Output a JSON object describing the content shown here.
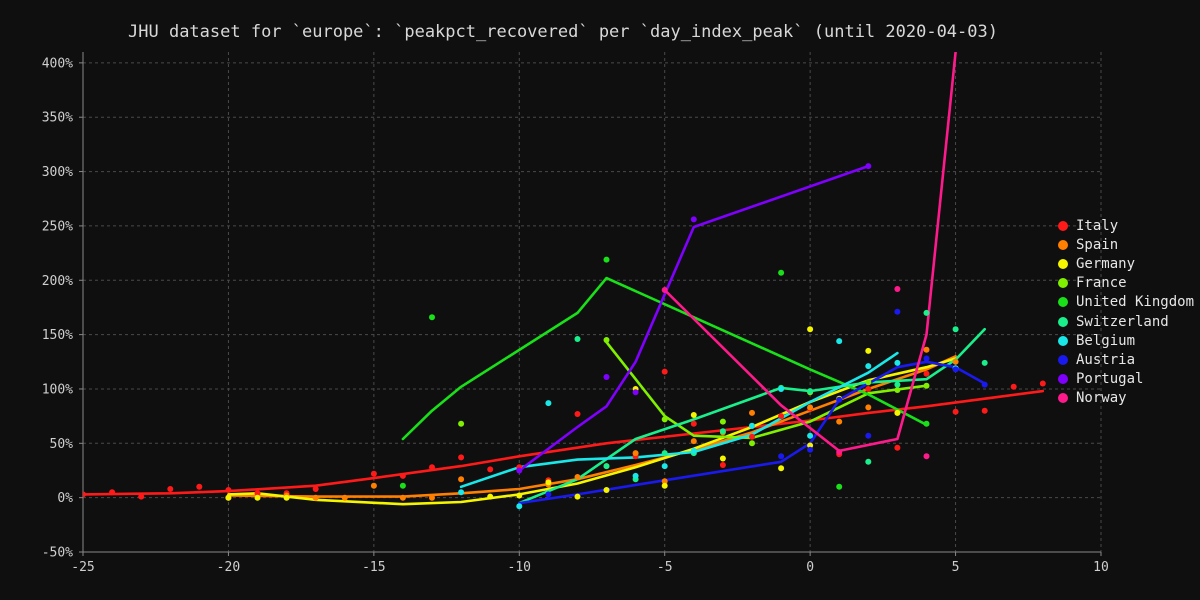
{
  "chart_data": {
    "type": "line",
    "title": "JHU dataset for `europe`: `peakpct_recovered` per `day_index_peak` (until 2020-04-03)",
    "xlabel": "",
    "ylabel": "",
    "xlim": [
      -25,
      10
    ],
    "ylim": [
      -50,
      410
    ],
    "x_ticks": [
      -25,
      -20,
      -15,
      -10,
      -5,
      0,
      5,
      10
    ],
    "y_ticks": [
      -50,
      0,
      50,
      100,
      150,
      200,
      250,
      300,
      350,
      400
    ],
    "y_tick_labels": [
      "-50%",
      "0%",
      "50%",
      "100%",
      "150%",
      "200%",
      "250%",
      "300%",
      "350%",
      "400%"
    ],
    "grid": true,
    "legend_position": "right",
    "series": [
      {
        "name": "Italy",
        "color": "#ff1a1a",
        "points": [
          [
            -25,
            3
          ],
          [
            -24,
            5
          ],
          [
            -23,
            1
          ],
          [
            -22,
            8
          ],
          [
            -21,
            10
          ],
          [
            -20,
            7
          ],
          [
            -19,
            4
          ],
          [
            -18,
            4
          ],
          [
            -17,
            8
          ],
          [
            -15,
            22
          ],
          [
            -14,
            20
          ],
          [
            -13,
            28
          ],
          [
            -12,
            37
          ],
          [
            -11,
            26
          ],
          [
            -10,
            28
          ],
          [
            -9,
            16
          ],
          [
            -8,
            77
          ],
          [
            -7,
            29
          ],
          [
            -6,
            38
          ],
          [
            -5,
            116
          ],
          [
            -4,
            68
          ],
          [
            -3,
            30
          ],
          [
            -2,
            56
          ],
          [
            -1,
            75
          ],
          [
            0,
            82
          ],
          [
            1,
            40
          ],
          [
            2,
            100
          ],
          [
            3,
            46
          ],
          [
            4,
            114
          ],
          [
            5,
            79
          ],
          [
            6,
            80
          ],
          [
            7,
            102
          ],
          [
            8,
            105
          ]
        ],
        "line": [
          [
            -25,
            3
          ],
          [
            -22,
            4
          ],
          [
            -20,
            6
          ],
          [
            -17,
            11
          ],
          [
            -15,
            18
          ],
          [
            -12,
            29
          ],
          [
            -10,
            38
          ],
          [
            -7,
            50
          ],
          [
            -4,
            59
          ],
          [
            -2,
            65
          ],
          [
            0,
            71
          ],
          [
            2,
            78
          ],
          [
            4,
            84
          ],
          [
            6,
            91
          ],
          [
            8,
            98
          ]
        ]
      },
      {
        "name": "Spain",
        "color": "#ff7f00",
        "points": [
          [
            -20,
            0
          ],
          [
            -18,
            2
          ],
          [
            -17,
            0
          ],
          [
            -16,
            0
          ],
          [
            -15,
            11
          ],
          [
            -14,
            0
          ],
          [
            -13,
            0
          ],
          [
            -12,
            17
          ],
          [
            -9,
            12
          ],
          [
            -8,
            19
          ],
          [
            -6,
            41
          ],
          [
            -5,
            15
          ],
          [
            -4,
            52
          ],
          [
            -3,
            60
          ],
          [
            -2,
            78
          ],
          [
            0,
            83
          ],
          [
            1,
            70
          ],
          [
            2,
            83
          ],
          [
            3,
            78
          ],
          [
            4,
            136
          ],
          [
            5,
            125
          ]
        ],
        "line": [
          [
            -20,
            2
          ],
          [
            -17,
            1
          ],
          [
            -14,
            1
          ],
          [
            -12,
            4
          ],
          [
            -10,
            8
          ],
          [
            -8,
            17
          ],
          [
            -6,
            30
          ],
          [
            -4,
            44
          ],
          [
            -2,
            60
          ],
          [
            0,
            80
          ],
          [
            2,
            100
          ],
          [
            4,
            118
          ],
          [
            5,
            130
          ]
        ]
      },
      {
        "name": "Germany",
        "color": "#f5f500",
        "points": [
          [
            -20,
            0
          ],
          [
            -19,
            0
          ],
          [
            -18,
            0
          ],
          [
            -11,
            1
          ],
          [
            -10,
            2
          ],
          [
            -9,
            14
          ],
          [
            -8,
            1
          ],
          [
            -7,
            7
          ],
          [
            -6,
            100
          ],
          [
            -5,
            11
          ],
          [
            -4,
            76
          ],
          [
            -3,
            36
          ],
          [
            -1,
            27
          ],
          [
            0,
            155
          ],
          [
            0,
            48
          ],
          [
            1,
            91
          ],
          [
            2,
            135
          ],
          [
            3,
            78
          ]
        ],
        "line": [
          [
            -20,
            3
          ],
          [
            -19,
            4
          ],
          [
            -17,
            -2
          ],
          [
            -14,
            -6
          ],
          [
            -12,
            -4
          ],
          [
            -10,
            3
          ],
          [
            -8,
            13
          ],
          [
            -6,
            28
          ],
          [
            -4,
            45
          ],
          [
            -2,
            65
          ],
          [
            0,
            88
          ],
          [
            2,
            108
          ],
          [
            4,
            120
          ],
          [
            5,
            128
          ]
        ]
      },
      {
        "name": "France",
        "color": "#80f000",
        "points": [
          [
            -12,
            68
          ],
          [
            -7,
            145
          ],
          [
            -5,
            72
          ],
          [
            -3,
            70
          ],
          [
            -2,
            50
          ],
          [
            0,
            97
          ],
          [
            2,
            106
          ],
          [
            3,
            99
          ],
          [
            4,
            103
          ]
        ],
        "line": [
          [
            -7,
            143
          ],
          [
            -5,
            75
          ],
          [
            -4,
            57
          ],
          [
            -2,
            55
          ],
          [
            0,
            70
          ],
          [
            2,
            96
          ],
          [
            4,
            103
          ]
        ]
      },
      {
        "name": "United Kingdom",
        "color": "#1ae01a",
        "points": [
          [
            -14,
            11
          ],
          [
            -13,
            166
          ],
          [
            -7,
            219
          ],
          [
            -1,
            207
          ],
          [
            1,
            10
          ],
          [
            4,
            68
          ]
        ],
        "line": [
          [
            -14,
            54
          ],
          [
            -13,
            80
          ],
          [
            -12,
            102
          ],
          [
            -8,
            170
          ],
          [
            -7,
            202
          ],
          [
            0,
            118
          ],
          [
            2,
            95
          ],
          [
            4,
            67
          ]
        ]
      },
      {
        "name": "Switzerland",
        "color": "#19f08b",
        "points": [
          [
            -8,
            146
          ],
          [
            -7,
            29
          ],
          [
            -6,
            17
          ],
          [
            -5,
            41
          ],
          [
            -4,
            41
          ],
          [
            -3,
            61
          ],
          [
            -2,
            66
          ],
          [
            -1,
            101
          ],
          [
            0,
            98
          ],
          [
            2,
            33
          ],
          [
            3,
            104
          ],
          [
            4,
            170
          ],
          [
            5,
            155
          ],
          [
            6,
            124
          ]
        ],
        "line": [
          [
            -10,
            -5
          ],
          [
            -8,
            17
          ],
          [
            -6,
            54
          ],
          [
            -4,
            72
          ],
          [
            -1,
            101
          ],
          [
            0,
            98
          ],
          [
            2,
            106
          ],
          [
            4,
            109
          ],
          [
            5,
            127
          ],
          [
            6,
            155
          ]
        ]
      },
      {
        "name": "Belgium",
        "color": "#1ae8e8",
        "points": [
          [
            -12,
            5
          ],
          [
            -10,
            -8
          ],
          [
            -9,
            87
          ],
          [
            -6,
            20
          ],
          [
            -5,
            29
          ],
          [
            -4,
            43
          ],
          [
            -2,
            66
          ],
          [
            -1,
            100
          ],
          [
            0,
            57
          ],
          [
            1,
            144
          ],
          [
            2,
            121
          ],
          [
            3,
            124
          ],
          [
            5,
            119
          ]
        ],
        "line": [
          [
            -12,
            10
          ],
          [
            -10,
            28
          ],
          [
            -8,
            35
          ],
          [
            -6,
            37
          ],
          [
            -4,
            42
          ],
          [
            -2,
            58
          ],
          [
            0,
            88
          ],
          [
            2,
            115
          ],
          [
            3,
            133
          ]
        ]
      },
      {
        "name": "Austria",
        "color": "#1a1af0",
        "points": [
          [
            -9,
            3
          ],
          [
            -1,
            38
          ],
          [
            0,
            44
          ],
          [
            1,
            90
          ],
          [
            2,
            57
          ],
          [
            3,
            171
          ],
          [
            4,
            128
          ],
          [
            5,
            118
          ],
          [
            6,
            104
          ]
        ],
        "line": [
          [
            -10,
            -5
          ],
          [
            -8,
            3
          ],
          [
            -5,
            16
          ],
          [
            -1,
            33
          ],
          [
            0,
            50
          ],
          [
            1,
            90
          ],
          [
            3,
            120
          ],
          [
            4,
            125
          ],
          [
            5,
            120
          ],
          [
            6,
            105
          ]
        ]
      },
      {
        "name": "Portugal",
        "color": "#7f00ff",
        "points": [
          [
            -10,
            25
          ],
          [
            -7,
            111
          ],
          [
            -6,
            97
          ],
          [
            -4,
            256
          ],
          [
            2,
            305
          ]
        ],
        "line": [
          [
            -10,
            25
          ],
          [
            -8,
            65
          ],
          [
            -7,
            84
          ],
          [
            -6,
            125
          ],
          [
            -4,
            249
          ],
          [
            2,
            305
          ]
        ]
      },
      {
        "name": "Norway",
        "color": "#ff1a8c",
        "points": [
          [
            -5,
            191
          ],
          [
            1,
            42
          ],
          [
            3,
            192
          ],
          [
            4,
            38
          ]
        ],
        "line": [
          [
            -5,
            191
          ],
          [
            -1,
            85
          ],
          [
            1,
            43
          ],
          [
            3,
            54
          ],
          [
            4,
            150
          ],
          [
            5,
            410
          ]
        ]
      }
    ]
  }
}
